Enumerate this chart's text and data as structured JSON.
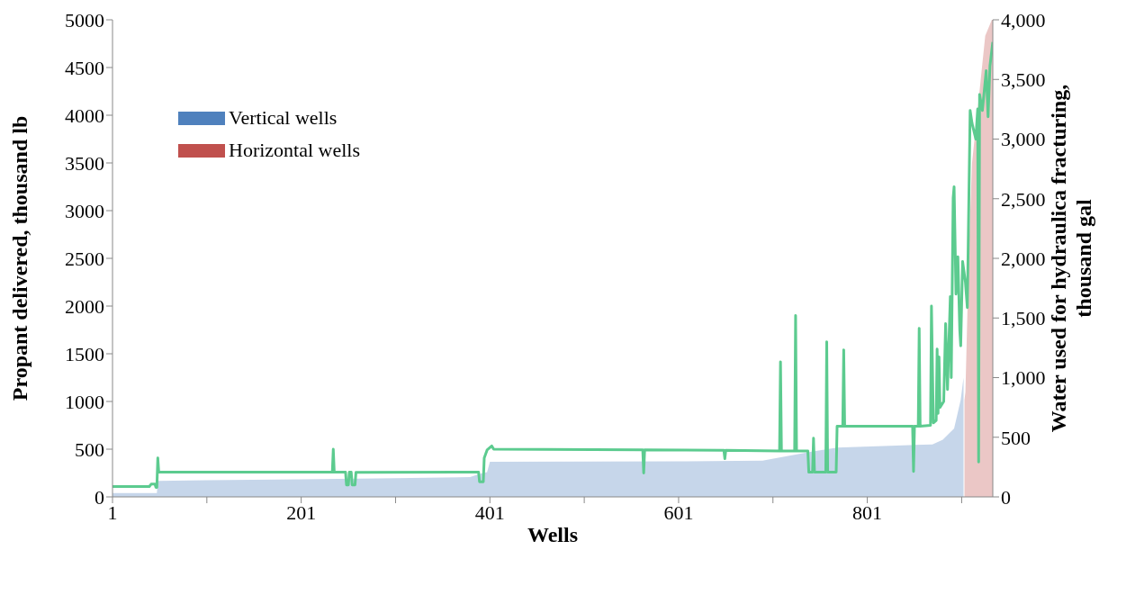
{
  "chart_data": {
    "type": "area",
    "xlabel": "Wells",
    "ylabel": "Propant delivered, thousand lb",
    "y2label": "Water used for hydraulica fracturing, thousand gal",
    "legend": "top left",
    "xlim": [
      1,
      934
    ],
    "xticks": [
      1,
      {
        "value": 101,
        "label": null
      },
      201,
      {
        "value": 301,
        "label": null
      },
      401,
      {
        "value": 501,
        "label": null
      },
      601,
      {
        "value": 701,
        "label": null
      },
      801,
      {
        "value": 901,
        "label": null
      }
    ],
    "ylim": [
      0,
      5000
    ],
    "yticks": [
      0,
      500,
      1000,
      1500,
      2000,
      2500,
      3000,
      3500,
      4000,
      4500,
      5000
    ],
    "y2lim": [
      0,
      4000
    ],
    "y2ticks": [
      0,
      500,
      {
        "value": 1000,
        "label": "1,000"
      },
      {
        "value": 1500,
        "label": "1,500"
      },
      {
        "value": 2000,
        "label": "2,000"
      },
      {
        "value": 2500,
        "label": "2,500"
      },
      {
        "value": 3000,
        "label": "3,000"
      },
      {
        "value": 3500,
        "label": "3,500"
      },
      {
        "value": 4000,
        "label": "4,000"
      }
    ],
    "series": [
      {
        "name": "Vertical wells",
        "color": "#4f81bd",
        "x": [
          1,
          48,
          49,
          100,
          200,
          300,
          380,
          390,
          398,
          401,
          500,
          600,
          690,
          742,
          769,
          870,
          881,
          893,
          900,
          903
        ],
        "values": [
          40,
          40,
          167,
          175,
          185,
          195,
          208,
          240,
          260,
          367,
          370,
          372,
          380,
          475,
          517,
          550,
          600,
          717,
          1017,
          1250
        ]
      },
      {
        "name": "Horizontal wells",
        "color": "#c0504d",
        "x": [
          904,
          905,
          909,
          912,
          918,
          926,
          933,
          934
        ],
        "values": [
          1017,
          1100,
          2683,
          3500,
          4067,
          4833,
          5000,
          5000
        ]
      },
      {
        "type": "line",
        "axis": "y2",
        "color": "#5ccb8f",
        "x": [
          1,
          40,
          42,
          46,
          47,
          48,
          49,
          50,
          234,
          235,
          236,
          248,
          249,
          251,
          252,
          254,
          255,
          258,
          259,
          389,
          390,
          394,
          395,
          398,
          403,
          405,
          563,
          564,
          565,
          649,
          650,
          651,
          708,
          709,
          710,
          724,
          725,
          726,
          738,
          739,
          743,
          744,
          745,
          757,
          758,
          759,
          768,
          769,
          775,
          776,
          777,
          849,
          850,
          851,
          855,
          856,
          857,
          868,
          869,
          871,
          874,
          875,
          876,
          877,
          878,
          882,
          884,
          886,
          889,
          890,
          892,
          893,
          895,
          897,
          899,
          900,
          902,
          905,
          907,
          910,
          912,
          916,
          918,
          919,
          920,
          923,
          927,
          929,
          931,
          934
        ],
        "values": [
          87,
          87,
          107,
          107,
          80,
          80,
          327,
          207,
          207,
          400,
          207,
          207,
          100,
          100,
          207,
          207,
          100,
          100,
          205,
          207,
          127,
          127,
          327,
          393,
          427,
          400,
          395,
          200,
          395,
          390,
          320,
          390,
          385,
          1133,
          385,
          385,
          1520,
          385,
          385,
          207,
          207,
          493,
          207,
          207,
          1300,
          207,
          207,
          593,
          593,
          1233,
          593,
          593,
          213,
          593,
          593,
          1413,
          593,
          600,
          1600,
          620,
          640,
          1240,
          700,
          1173,
          750,
          800,
          1453,
          900,
          1680,
          1000,
          2507,
          2600,
          1700,
          2013,
          1400,
          1267,
          1973,
          1800,
          1587,
          3240,
          3133,
          3000,
          3253,
          293,
          3373,
          3240,
          3573,
          3187,
          3613,
          3813
        ]
      }
    ]
  }
}
